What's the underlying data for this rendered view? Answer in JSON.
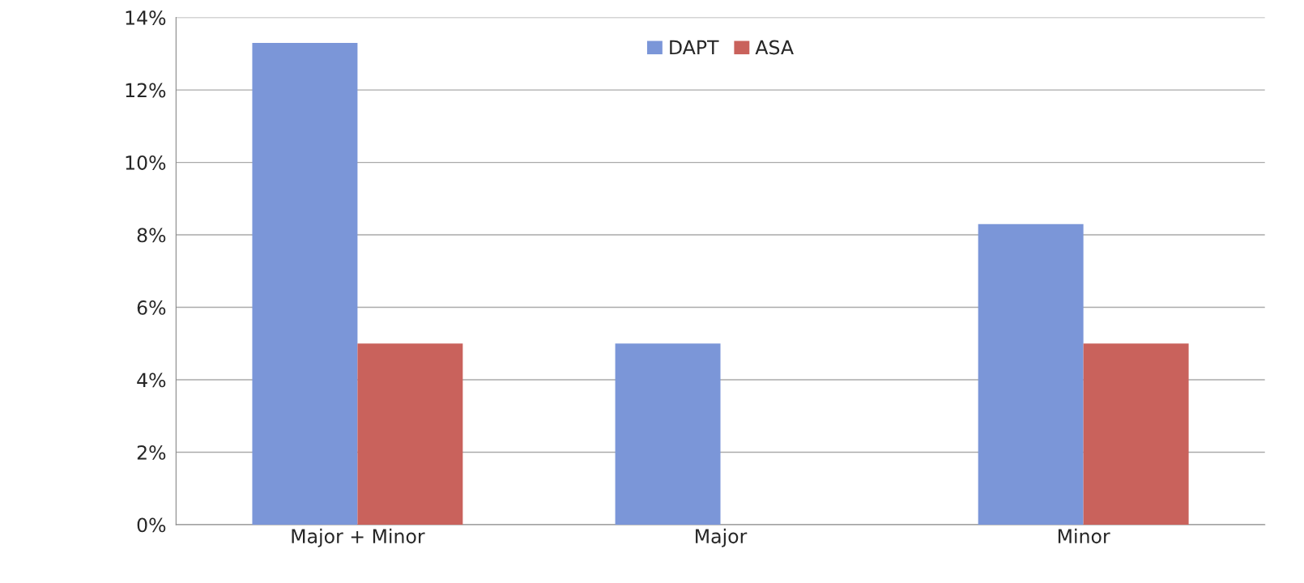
{
  "chart_data": {
    "type": "bar",
    "categories": [
      "Major + Minor",
      "Major",
      "Minor"
    ],
    "series": [
      {
        "name": "DAPT",
        "color": "#7b96d8",
        "values": [
          13.3,
          5.0,
          8.3
        ]
      },
      {
        "name": "ASA",
        "color": "#c9625c",
        "values": [
          5.0,
          null,
          5.0
        ]
      }
    ],
    "ylim": [
      0,
      14
    ],
    "yticks": [
      {
        "value": 0,
        "label": "0%"
      },
      {
        "value": 2,
        "label": "2%"
      },
      {
        "value": 4,
        "label": "4%"
      },
      {
        "value": 6,
        "label": "6%"
      },
      {
        "value": 8,
        "label": "8%"
      },
      {
        "value": 10,
        "label": "10%"
      },
      {
        "value": 12,
        "label": "12%"
      },
      {
        "value": 14,
        "label": "14%"
      }
    ],
    "grid": "y",
    "legend": "top"
  }
}
